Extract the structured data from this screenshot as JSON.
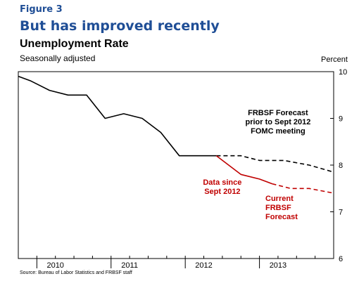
{
  "figure_label": "Figure 3",
  "headline": "But has improved recently",
  "source": "Source: Bureau of Labor Statistics and FRBSF staff",
  "chart_data": {
    "type": "line",
    "title": "Unemployment Rate",
    "subtitle": "Seasonally adjusted",
    "ylabel": "Percent",
    "ylim": [
      6,
      10
    ],
    "yticks": [
      6,
      7,
      8,
      9,
      10
    ],
    "xlim": [
      2009.75,
      2014.0
    ],
    "xtick_labels": [
      {
        "label": "2010",
        "x": 2010.25
      },
      {
        "label": "2011",
        "x": 2011.25
      },
      {
        "label": "2012",
        "x": 2012.25
      },
      {
        "label": "2013",
        "x": 2013.25
      }
    ],
    "xtick_marks": [
      2010.0,
      2010.25,
      2010.5,
      2010.75,
      2011.0,
      2011.25,
      2011.5,
      2011.75,
      2012.0,
      2012.25,
      2012.5,
      2012.75,
      2013.0,
      2013.25,
      2013.5,
      2013.75
    ],
    "year_boundaries": [
      2010.0,
      2011.0,
      2012.0,
      2013.0
    ],
    "grid": false,
    "series": [
      {
        "key": "history",
        "color": "#000000",
        "dashed": false,
        "x": [
          2009.75,
          2009.92,
          2010.17,
          2010.42,
          2010.67,
          2010.92,
          2011.17,
          2011.42,
          2011.67,
          2011.92,
          2012.17,
          2012.42
        ],
        "y": [
          9.9,
          9.8,
          9.6,
          9.5,
          9.5,
          9.0,
          9.1,
          9.0,
          8.7,
          8.2,
          8.2,
          8.2
        ]
      },
      {
        "key": "prior_forecast",
        "color": "#000000",
        "dashed": true,
        "x": [
          2012.42,
          2012.75,
          2013.0,
          2013.33,
          2013.67,
          2014.0
        ],
        "y": [
          8.2,
          8.2,
          8.1,
          8.1,
          8.0,
          7.85
        ]
      },
      {
        "key": "data_since_sept",
        "color": "#c00000",
        "dashed": false,
        "x": [
          2012.42,
          2012.75,
          2013.0,
          2013.17
        ],
        "y": [
          8.2,
          7.8,
          7.7,
          7.6
        ]
      },
      {
        "key": "current_forecast",
        "color": "#c00000",
        "dashed": true,
        "x": [
          2013.17,
          2013.42,
          2013.67,
          2014.0
        ],
        "y": [
          7.6,
          7.5,
          7.5,
          7.4
        ]
      }
    ],
    "annotations": [
      {
        "lines": [
          "FRBSF Forecast",
          "prior to Sept 2012",
          "FOMC meeting"
        ],
        "color": "#000000",
        "x": 2013.25,
        "y": 9.07,
        "align": "middle"
      },
      {
        "lines": [
          "Data since",
          "Sept 2012"
        ],
        "color": "#c00000",
        "x": 2012.5,
        "y": 7.58,
        "align": "middle"
      },
      {
        "lines": [
          "Current",
          "FRBSF",
          "Forecast"
        ],
        "color": "#c00000",
        "x": 2013.08,
        "y": 7.23,
        "align": "start"
      }
    ]
  }
}
